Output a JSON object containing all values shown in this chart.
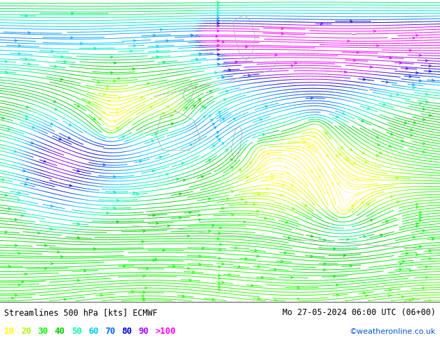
{
  "title_left": "Streamlines 500 hPa [kts] ECMWF",
  "title_right": "Mo 27-05-2024 06:00 UTC (06+00)",
  "credit": "©weatheronline.co.uk",
  "legend_values": [
    "10",
    "20",
    "30",
    "40",
    "50",
    "60",
    "70",
    "80",
    "90",
    ">100"
  ],
  "legend_colors": [
    "#ffff00",
    "#aaff00",
    "#00ff00",
    "#00cc00",
    "#00ffaa",
    "#00ccff",
    "#0066ff",
    "#0000cc",
    "#aa00ff",
    "#ff00ff"
  ],
  "colormap_levels": [
    0,
    10,
    20,
    30,
    40,
    50,
    60,
    70,
    80,
    90,
    100,
    120
  ],
  "colormap_colors": [
    "#f5f5f5",
    "#ffff00",
    "#aaff00",
    "#00ff00",
    "#00cc00",
    "#00ffaa",
    "#00ccff",
    "#0066ff",
    "#0000cc",
    "#aa00ff",
    "#ff00ff",
    "#ff00ff"
  ],
  "bg_color": "#f5f5f5",
  "figsize": [
    6.34,
    4.9
  ],
  "dpi": 100
}
